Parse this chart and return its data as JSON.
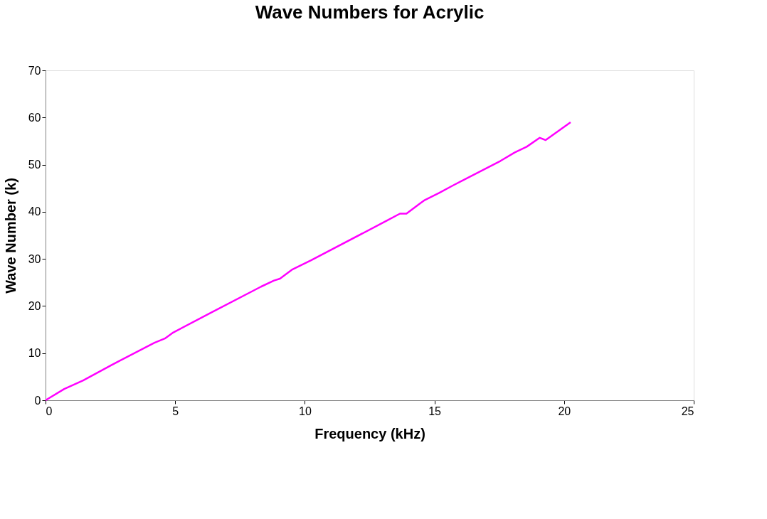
{
  "chart_data": {
    "type": "line",
    "title": "Wave Numbers for Acrylic",
    "xlabel": "Frequency (kHz)",
    "ylabel": "Wave Number (k)",
    "x": [
      0,
      0.72,
      1.45,
      2.55,
      4.2,
      4.6,
      4.93,
      6.39,
      8.31,
      8.81,
      9.04,
      9.5,
      10.24,
      13.16,
      13.67,
      13.92,
      14.45,
      14.63,
      15.18,
      15.72,
      17.55,
      18.1,
      18.56,
      19.06,
      19.29,
      20.25
    ],
    "series": [
      {
        "color": "#ff00ff",
        "values": [
          0,
          2.4,
          4.2,
          7.5,
          12.2,
          13.1,
          14.4,
          18.6,
          24.1,
          25.4,
          25.8,
          27.7,
          29.7,
          38.1,
          39.6,
          39.6,
          41.8,
          42.5,
          44.0,
          45.6,
          50.8,
          52.6,
          53.8,
          55.7,
          55.2,
          59.0
        ]
      }
    ],
    "xlim": [
      0,
      25
    ],
    "xticks": [
      0,
      5,
      10,
      15,
      20,
      25
    ],
    "ylim": [
      0,
      70
    ],
    "yticks": [
      0,
      10,
      20,
      30,
      40,
      50,
      60,
      70
    ],
    "grid": false,
    "legend": false,
    "marker": "none",
    "line_style": "solid"
  }
}
